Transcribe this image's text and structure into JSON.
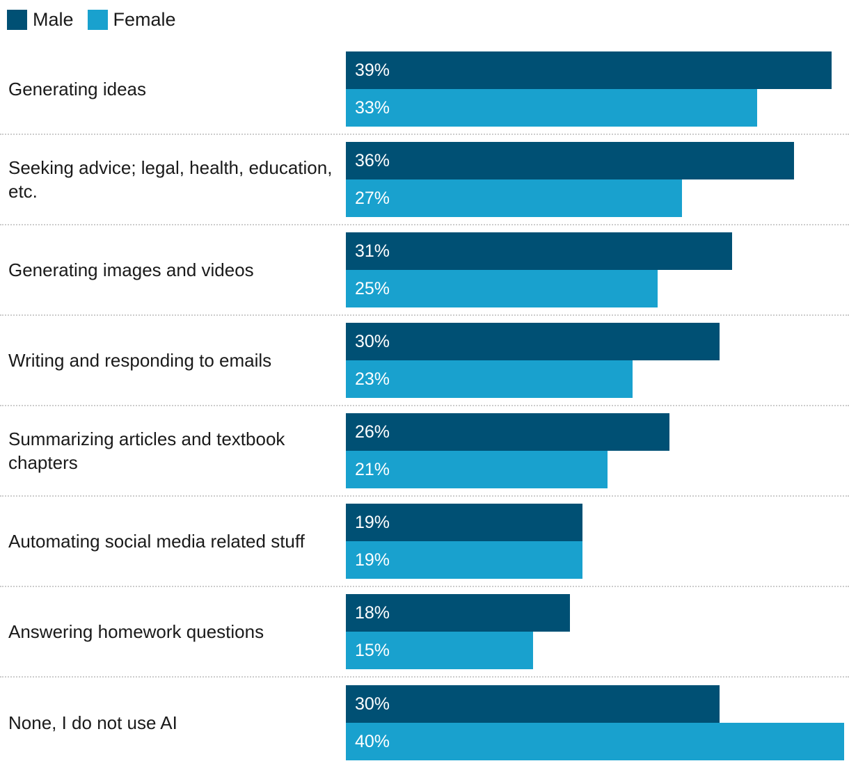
{
  "legend": {
    "items": [
      {
        "label": "Male",
        "color": "#005074"
      },
      {
        "label": "Female",
        "color": "#19A1CE"
      }
    ]
  },
  "chart_data": {
    "type": "bar",
    "orientation": "horizontal",
    "title": "",
    "xlabel": "",
    "ylabel": "",
    "xlim": [
      0,
      40
    ],
    "grid": false,
    "legend_position": "top-left",
    "value_suffix": "%",
    "bar_text_color": "#ffffff",
    "separator_color": "#cccccc",
    "categories": [
      "Generating ideas",
      "Seeking advice; legal, health, education, etc.",
      "Generating images and videos",
      "Writing and responding to emails",
      "Summarizing articles and textbook chapters",
      "Automating social media related stuff",
      "Answering homework questions",
      "None, I do not use AI"
    ],
    "series": [
      {
        "name": "Male",
        "color": "#005074",
        "values": [
          39,
          36,
          31,
          30,
          26,
          19,
          18,
          30
        ]
      },
      {
        "name": "Female",
        "color": "#19A1CE",
        "values": [
          33,
          27,
          25,
          23,
          21,
          19,
          15,
          40
        ]
      }
    ]
  }
}
